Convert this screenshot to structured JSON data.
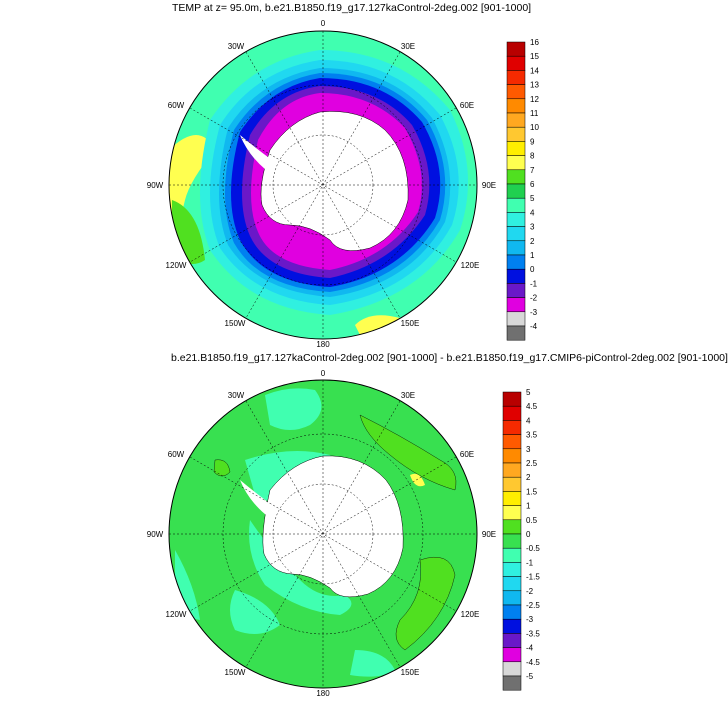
{
  "top": {
    "title": "TEMP at z=  95.0m, b.e21.B1850.f19_g17.127kaControl-2deg.002 [901-1000]",
    "lon_labels": [
      "0",
      "30E",
      "60E",
      "90E",
      "120E",
      "150E",
      "180",
      "150W",
      "120W",
      "90W",
      "60W",
      "30W"
    ],
    "colorbar": {
      "labels": [
        "16",
        "15",
        "14",
        "13",
        "12",
        "11",
        "10",
        "9",
        "8",
        "7",
        "6",
        "5",
        "4",
        "3",
        "2",
        "1",
        "0",
        "-1",
        "-2",
        "-3",
        "-4"
      ],
      "colors": [
        "#b80000",
        "#e00000",
        "#f52a00",
        "#ff5a00",
        "#ff8a00",
        "#ffa820",
        "#ffc830",
        "#ffee00",
        "#ffff50",
        "#50e020",
        "#20d050",
        "#40ffb0",
        "#30f0e0",
        "#20d8f0",
        "#10b8f0",
        "#0080f0",
        "#0010e0",
        "#6a18c8",
        "#e000e0",
        "#d8d8d8",
        "#707070"
      ]
    }
  },
  "bottom": {
    "title": "b.e21.B1850.f19_g17.127kaControl-2deg.002 [901-1000] - b.e21.B1850.f19_g17.CMIP6-piControl-2deg.002 [901-1000]",
    "lon_labels": [
      "0",
      "30E",
      "60E",
      "90E",
      "120E",
      "150E",
      "180",
      "150W",
      "120W",
      "90W",
      "60W",
      "30W"
    ],
    "colorbar": {
      "labels": [
        "5",
        "4.5",
        "4",
        "3.5",
        "3",
        "2.5",
        "2",
        "1.5",
        "1",
        "0.5",
        "0",
        "-0.5",
        "-1",
        "-1.5",
        "-2",
        "-2.5",
        "-3",
        "-3.5",
        "-4",
        "-4.5",
        "-5"
      ],
      "colors": [
        "#b80000",
        "#e00000",
        "#f52a00",
        "#ff5a00",
        "#ff8a00",
        "#ffa820",
        "#ffc830",
        "#ffee00",
        "#ffff50",
        "#50e020",
        "#38e050",
        "#40ffb0",
        "#30f0e0",
        "#20d8f0",
        "#10b8f0",
        "#0080f0",
        "#0010e0",
        "#6a18c8",
        "#e000e0",
        "#d8d8d8",
        "#707070"
      ]
    }
  },
  "colors": {
    "land": "#ffffff",
    "graticule": "#000000"
  }
}
